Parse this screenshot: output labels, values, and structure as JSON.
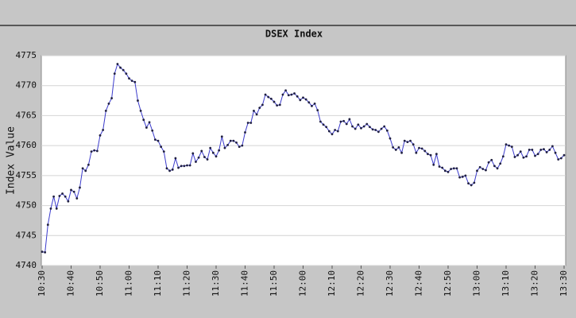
{
  "chart_data": {
    "type": "line",
    "title": "DSEX Index",
    "y_label": "Index Value",
    "color": "#3a3acc",
    "marker_color": "#202040",
    "grid": true,
    "ylim": [
      4740,
      4775
    ],
    "yticks": [
      4740,
      4745,
      4750,
      4755,
      4760,
      4765,
      4770,
      4775
    ],
    "categories": [
      "10:30",
      null,
      null,
      null,
      null,
      null,
      null,
      null,
      null,
      null,
      "10:40",
      null,
      null,
      null,
      null,
      null,
      null,
      null,
      null,
      null,
      "10:50",
      null,
      null,
      null,
      null,
      null,
      null,
      null,
      null,
      null,
      "11:00",
      null,
      null,
      null,
      null,
      null,
      null,
      null,
      null,
      null,
      "11:10",
      null,
      null,
      null,
      null,
      null,
      null,
      null,
      null,
      null,
      "11:20",
      null,
      null,
      null,
      null,
      null,
      null,
      null,
      null,
      null,
      "11:30",
      null,
      null,
      null,
      null,
      null,
      null,
      null,
      null,
      null,
      "11:40",
      null,
      null,
      null,
      null,
      null,
      null,
      null,
      null,
      null,
      "11:50",
      null,
      null,
      null,
      null,
      null,
      null,
      null,
      null,
      null,
      "12:00",
      null,
      null,
      null,
      null,
      null,
      null,
      null,
      null,
      null,
      "12:10",
      null,
      null,
      null,
      null,
      null,
      null,
      null,
      null,
      null,
      "12:20",
      null,
      null,
      null,
      null,
      null,
      null,
      null,
      null,
      null,
      "12:30",
      null,
      null,
      null,
      null,
      null,
      null,
      null,
      null,
      null,
      "12:40",
      null,
      null,
      null,
      null,
      null,
      null,
      null,
      null,
      null,
      "12:50",
      null,
      null,
      null,
      null,
      null,
      null,
      null,
      null,
      null,
      "13:00",
      null,
      null,
      null,
      null,
      null,
      null,
      null,
      null,
      null,
      "13:10",
      null,
      null,
      null,
      null,
      null,
      null,
      null,
      null,
      null,
      "13:20",
      null,
      null,
      null,
      null,
      null,
      null,
      null,
      null,
      null,
      "13:30"
    ],
    "values": [
      4742.3,
      4742.2,
      4746.8,
      4749.5,
      4751.5,
      4749.5,
      4751.6,
      4752,
      4751.5,
      4750.7,
      4752.6,
      4752.3,
      4751.2,
      4753,
      4756.2,
      4755.8,
      4756.8,
      4759,
      4759.2,
      4759.1,
      4761.7,
      4762.6,
      4765.8,
      4767,
      4767.9,
      4772,
      4773.6,
      4773,
      4772.6,
      4772,
      4771.2,
      4770.8,
      4770.6,
      4767.5,
      4765.8,
      4764.3,
      4763,
      4763.9,
      4762.5,
      4761,
      4760.8,
      4759.8,
      4759,
      4756.2,
      4755.8,
      4756,
      4757.9,
      4756.3,
      4756.6,
      4756.6,
      4756.7,
      4756.7,
      4758.7,
      4757.3,
      4758,
      4759.1,
      4758.1,
      4757.7,
      4759.6,
      4758.8,
      4758.2,
      4759.2,
      4761.5,
      4759.6,
      4760.1,
      4760.8,
      4760.8,
      4760.5,
      4759.8,
      4760,
      4762.2,
      4763.8,
      4763.8,
      4765.8,
      4765.2,
      4766.3,
      4766.8,
      4768.5,
      4768.1,
      4767.8,
      4767.3,
      4766.7,
      4766.8,
      4768.5,
      4769.2,
      4768.4,
      4768.5,
      4768.7,
      4768.2,
      4767.6,
      4768,
      4767.7,
      4767.2,
      4766.6,
      4767,
      4765.9,
      4764,
      4763.5,
      4763.1,
      4762.4,
      4761.9,
      4762.6,
      4762.4,
      4764,
      4764.1,
      4763.6,
      4764.4,
      4763.2,
      4762.8,
      4763.5,
      4762.9,
      4763.2,
      4763.6,
      4763.1,
      4762.7,
      4762.6,
      4762.3,
      4762.8,
      4763.2,
      4762.5,
      4761.2,
      4759.7,
      4759.3,
      4759.7,
      4758.8,
      4760.8,
      4760.6,
      4760.8,
      4760.2,
      4758.8,
      4759.6,
      4759.5,
      4759.1,
      4758.6,
      4758.4,
      4756.8,
      4758.6,
      4756.5,
      4756.3,
      4755.8,
      4755.6,
      4756.1,
      4756.2,
      4756.2,
      4754.7,
      4754.8,
      4755,
      4753.7,
      4753.4,
      4753.8,
      4755.8,
      4756.4,
      4756.1,
      4755.9,
      4757.2,
      4757.6,
      4756.6,
      4756.2,
      4757,
      4758.2,
      4760.2,
      4760,
      4759.8,
      4758.1,
      4758.4,
      4759,
      4758,
      4758.2,
      4759.3,
      4759.3,
      4758.3,
      4758.6,
      4759.3,
      4759.4,
      4758.9,
      4759.3,
      4759.9,
      4758.8,
      4757.7,
      4757.9,
      4758.4
    ]
  }
}
